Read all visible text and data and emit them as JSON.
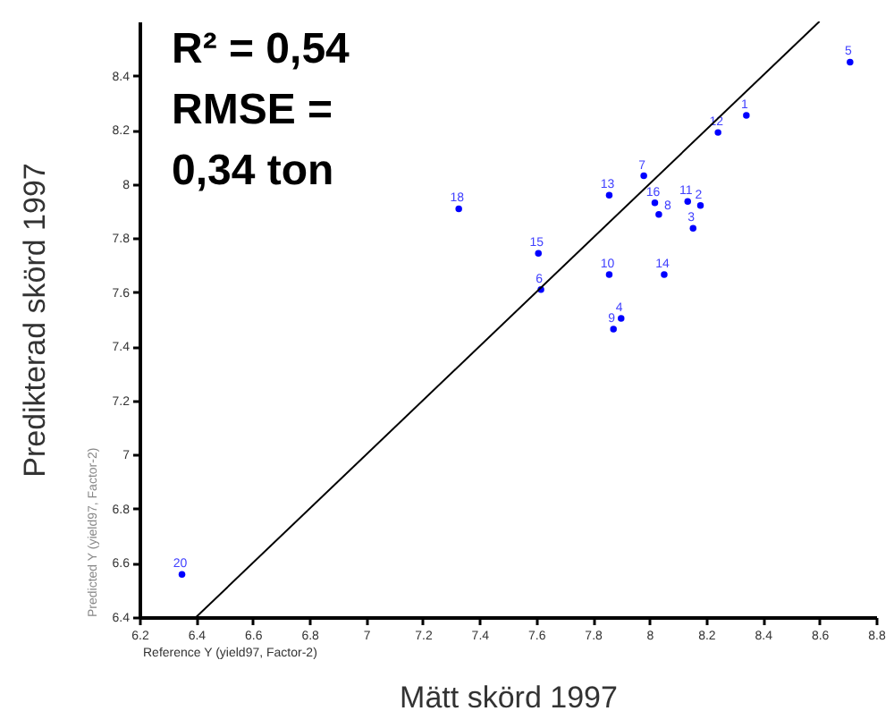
{
  "chart_data": {
    "type": "scatter",
    "xlabel": "Mätt skörd 1997",
    "ylabel": "Predikterad skörd 1997",
    "xlim": [
      6.2,
      8.8
    ],
    "ylim": [
      6.4,
      8.6
    ],
    "xticks": [
      6.2,
      6.4,
      6.6,
      6.8,
      7,
      7.2,
      7.4,
      7.6,
      7.8,
      8,
      8.2,
      8.4,
      8.6,
      8.8
    ],
    "yticks": [
      6.4,
      6.6,
      6.8,
      7,
      7.2,
      7.4,
      7.6,
      7.8,
      8,
      8.2,
      8.4
    ],
    "grid": false,
    "series": [
      {
        "color": "#0000ff",
        "marker": "circle",
        "x": [
          8.342,
          8.18,
          8.154,
          7.9,
          8.708,
          7.617,
          7.98,
          8.033,
          7.873,
          7.858,
          8.135,
          8.242,
          7.858,
          8.052,
          7.608,
          8.019,
          7.327,
          6.35
        ],
        "values": [
          8.253,
          7.92,
          7.836,
          7.503,
          8.45,
          7.61,
          8.03,
          7.887,
          7.464,
          7.665,
          7.935,
          8.19,
          7.958,
          7.665,
          7.744,
          7.93,
          7.908,
          6.558
        ]
      },
      {
        "type": "line",
        "color": "#000000",
        "x": [
          6.4,
          8.6
        ],
        "values": [
          6.4,
          8.6
        ]
      }
    ],
    "annotations": [
      "R² = 0,54",
      "RMSE =",
      "0,34 ton",
      "Reference Y (yield97, Factor-2)",
      "Predicted Y (yield97, Factor-2)",
      {
        "text": "1",
        "x": 8.342,
        "y": 8.253
      },
      {
        "text": "2",
        "x": 8.18,
        "y": 7.92
      },
      {
        "text": "3",
        "x": 8.154,
        "y": 7.836
      },
      {
        "text": "4",
        "x": 7.9,
        "y": 7.503
      },
      {
        "text": "5",
        "x": 8.708,
        "y": 8.45
      },
      {
        "text": "6",
        "x": 7.617,
        "y": 7.61
      },
      {
        "text": "7",
        "x": 7.98,
        "y": 8.03
      },
      {
        "text": "8",
        "x": 8.033,
        "y": 7.887
      },
      {
        "text": "9",
        "x": 7.873,
        "y": 7.464
      },
      {
        "text": "10",
        "x": 7.858,
        "y": 7.665
      },
      {
        "text": "11",
        "x": 8.135,
        "y": 7.935
      },
      {
        "text": "12",
        "x": 8.242,
        "y": 8.19
      },
      {
        "text": "13",
        "x": 7.858,
        "y": 7.958
      },
      {
        "text": "14",
        "x": 8.052,
        "y": 7.665
      },
      {
        "text": "15",
        "x": 7.608,
        "y": 7.744
      },
      {
        "text": "16",
        "x": 8.019,
        "y": 7.93
      },
      {
        "text": "18",
        "x": 7.327,
        "y": 7.908
      },
      {
        "text": "20",
        "x": 6.35,
        "y": 6.558
      }
    ]
  }
}
